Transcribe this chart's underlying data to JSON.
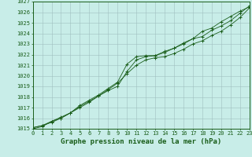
{
  "xlabel": "Graphe pression niveau de la mer (hPa)",
  "ylim": [
    1015,
    1027
  ],
  "xlim": [
    0,
    23
  ],
  "yticks": [
    1015,
    1016,
    1017,
    1018,
    1019,
    1020,
    1021,
    1022,
    1023,
    1024,
    1025,
    1026,
    1027
  ],
  "xticks": [
    0,
    1,
    2,
    3,
    4,
    5,
    6,
    7,
    8,
    9,
    10,
    11,
    12,
    13,
    14,
    15,
    16,
    17,
    18,
    19,
    20,
    21,
    22,
    23
  ],
  "background_color": "#c8ede8",
  "grid_color": "#9fbfbf",
  "line_color": "#1a5e1a",
  "line1_y": [
    1015.1,
    1015.3,
    1015.6,
    1016.0,
    1016.5,
    1017.1,
    1017.6,
    1018.1,
    1018.7,
    1019.3,
    1020.2,
    1021.0,
    1021.5,
    1021.7,
    1021.8,
    1022.1,
    1022.5,
    1023.0,
    1023.3,
    1023.8,
    1024.2,
    1024.8,
    1025.5,
    1026.4
  ],
  "line2_y": [
    1015.1,
    1015.3,
    1015.7,
    1016.1,
    1016.5,
    1017.2,
    1017.7,
    1018.2,
    1018.8,
    1019.4,
    1021.1,
    1021.8,
    1021.9,
    1021.9,
    1022.2,
    1022.6,
    1023.0,
    1023.5,
    1023.7,
    1024.3,
    1024.7,
    1025.2,
    1025.9,
    1026.6
  ],
  "line3_y": [
    1015.0,
    1015.2,
    1015.7,
    1016.0,
    1016.5,
    1017.0,
    1017.5,
    1018.1,
    1018.6,
    1019.0,
    1020.4,
    1021.5,
    1021.8,
    1021.9,
    1022.3,
    1022.6,
    1023.1,
    1023.5,
    1024.2,
    1024.5,
    1025.1,
    1025.6,
    1026.1,
    1026.5
  ],
  "tick_fontsize": 5.0,
  "label_fontsize": 6.5,
  "label_fontweight": "bold"
}
